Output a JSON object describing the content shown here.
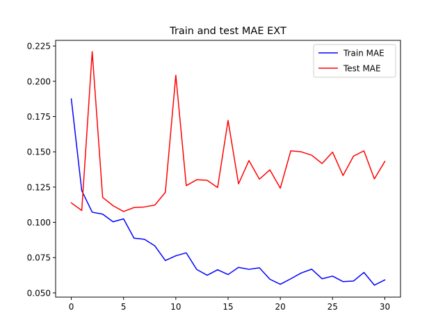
{
  "chart_data": {
    "type": "line",
    "title": "Train and test MAE EXT",
    "xlabel": "",
    "ylabel": "",
    "xlim": [
      -1.5,
      31.5
    ],
    "ylim": [
      0.047,
      0.229
    ],
    "x_ticks": [
      0,
      5,
      10,
      15,
      20,
      25,
      30
    ],
    "x_tick_labels": [
      "0",
      "5",
      "10",
      "15",
      "20",
      "25",
      "30"
    ],
    "y_ticks": [
      0.05,
      0.075,
      0.1,
      0.125,
      0.15,
      0.175,
      0.2,
      0.225
    ],
    "y_tick_labels": [
      "0.050",
      "0.075",
      "0.100",
      "0.125",
      "0.150",
      "0.175",
      "0.200",
      "0.225"
    ],
    "grid": false,
    "legend_position": "upper-right",
    "x": [
      0,
      1,
      2,
      3,
      4,
      5,
      6,
      7,
      8,
      9,
      10,
      11,
      12,
      13,
      14,
      15,
      16,
      17,
      18,
      19,
      20,
      21,
      22,
      23,
      24,
      25,
      26,
      27,
      28,
      29,
      30
    ],
    "series": [
      {
        "name": "Train MAE",
        "color": "#0000ff",
        "values": [
          0.1875,
          0.1225,
          0.1072,
          0.1058,
          0.1004,
          0.1025,
          0.0888,
          0.088,
          0.0833,
          0.0729,
          0.0763,
          0.0784,
          0.0666,
          0.0625,
          0.0664,
          0.063,
          0.0681,
          0.0667,
          0.0678,
          0.0597,
          0.0561,
          0.06,
          0.0641,
          0.0668,
          0.06,
          0.0619,
          0.058,
          0.0584,
          0.0645,
          0.0555,
          0.0592
        ]
      },
      {
        "name": "Test MAE",
        "color": "#ff0000",
        "values": [
          0.1138,
          0.1084,
          0.221,
          0.1177,
          0.1118,
          0.1077,
          0.1105,
          0.1109,
          0.1123,
          0.1213,
          0.2043,
          0.126,
          0.1302,
          0.1298,
          0.1247,
          0.1723,
          0.1273,
          0.1438,
          0.1306,
          0.1372,
          0.1242,
          0.1507,
          0.15,
          0.1476,
          0.1417,
          0.1498,
          0.1332,
          0.1469,
          0.1507,
          0.1308,
          0.1432
        ]
      }
    ]
  }
}
